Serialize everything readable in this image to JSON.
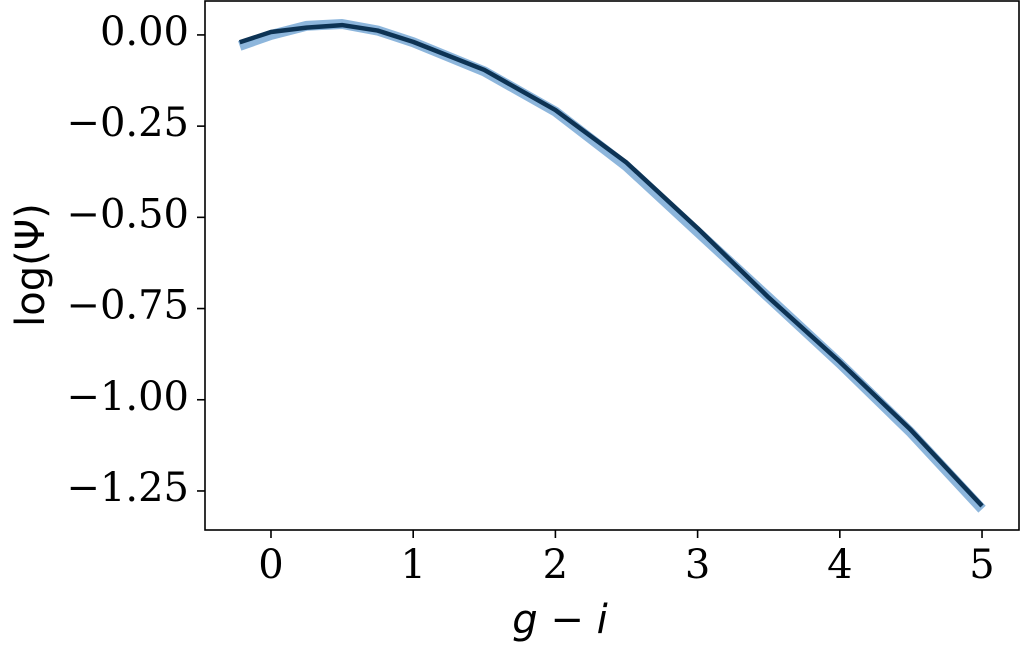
{
  "chart_data": {
    "type": "line",
    "x_label": "g − i",
    "y_label": "log(Ψ)",
    "x": [
      -0.22,
      0,
      0.25,
      0.5,
      0.75,
      1.0,
      1.5,
      2.0,
      2.5,
      3.0,
      3.5,
      4.0,
      4.5,
      5.0
    ],
    "series": [
      {
        "color": "#8db6dc",
        "values": [
          -0.03,
          0.0,
          0.025,
          0.03,
          0.012,
          -0.02,
          -0.1,
          -0.21,
          -0.36,
          -0.54,
          -0.72,
          -0.9,
          -1.09,
          -1.3
        ]
      },
      {
        "color": "#0d3354",
        "values": [
          -0.02,
          0.008,
          0.02,
          0.027,
          0.012,
          -0.019,
          -0.096,
          -0.206,
          -0.35,
          -0.53,
          -0.72,
          -0.896,
          -1.083,
          -1.291
        ]
      }
    ],
    "xlim": [
      -0.464,
      5.26
    ],
    "ylim": [
      -1.357,
      0.093
    ],
    "xticks": [
      0,
      1,
      2,
      3,
      4,
      5
    ],
    "yticks": [
      {
        "value": 0,
        "label": "0.00"
      },
      {
        "value": -0.25,
        "label": "−0.25"
      },
      {
        "value": -0.5,
        "label": "−0.50"
      },
      {
        "value": -0.75,
        "label": "−0.75"
      },
      {
        "value": -1.0,
        "label": "−1.00"
      },
      {
        "value": -1.25,
        "label": "−1.25"
      }
    ]
  }
}
